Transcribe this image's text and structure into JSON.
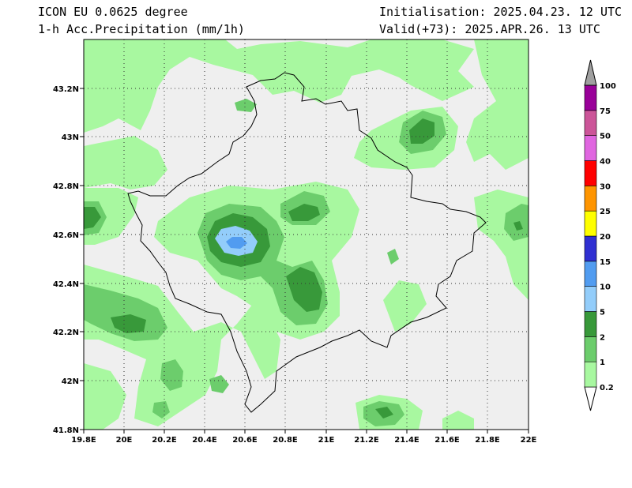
{
  "header": {
    "model": "ICON EU 0.0625 degree",
    "field": "1-h Acc.Precipitation (mm/1h)",
    "init": "Initialisation: 2025.04.23. 12 UTC",
    "valid": "Valid(+73): 2025.APR.26. 13 UTC"
  },
  "map": {
    "lon_range": [
      19.8,
      22.0
    ],
    "lat_range": [
      41.8,
      43.4
    ],
    "x_ticks": [
      "19.8E",
      "20E",
      "20.2E",
      "20.4E",
      "20.6E",
      "20.8E",
      "21E",
      "21.2E",
      "21.4E",
      "21.6E",
      "21.8E",
      "22E"
    ],
    "y_ticks": [
      "41.8N",
      "42N",
      "42.2N",
      "42.4N",
      "42.6N",
      "42.8N",
      "43N",
      "43.2N"
    ],
    "grid": "dotted"
  },
  "legend": {
    "levels": [
      {
        "label": "0.2",
        "color": "#ffffff"
      },
      {
        "label": "1",
        "color": "#a8f8a0"
      },
      {
        "label": "2",
        "color": "#6ccd6c"
      },
      {
        "label": "5",
        "color": "#38993a"
      },
      {
        "label": "10",
        "color": "#93cdfa"
      },
      {
        "label": "15",
        "color": "#519cf0"
      },
      {
        "label": "20",
        "color": "#3030d2"
      },
      {
        "label": "25",
        "color": "#ffff00"
      },
      {
        "label": "30",
        "color": "#ff9500"
      },
      {
        "label": "40",
        "color": "#ff0000"
      },
      {
        "label": "50",
        "color": "#e066e0"
      },
      {
        "label": "75",
        "color": "#cc5599"
      },
      {
        "label": "100",
        "color": "#990099"
      }
    ],
    "overflow_color": "#a0a0a0"
  }
}
